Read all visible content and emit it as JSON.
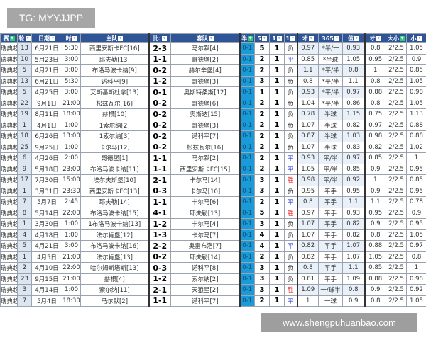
{
  "watermark_top": "TG: MYYJJPP",
  "watermark_bottom": "www.shengpuhuanbao.com",
  "colors": {
    "header": "#2f5597",
    "half_column": "#1a9ad6",
    "draw": "#3b4bd6",
    "win": "#e53030"
  },
  "headers": [
    "赛",
    "轮",
    "日期",
    "时",
    "主队",
    "比:",
    "客队",
    "半",
    "5",
    "1",
    "1",
    "才",
    "365",
    "值",
    "才",
    "大小",
    "小"
  ],
  "filtered_columns": [
    0,
    7,
    15
  ],
  "rows": [
    [
      "瑞典超",
      "13",
      "6月21日",
      "5:30",
      "西里安斯卡FC[16]",
      "2-3",
      "马尔默[4]",
      "0-1",
      "5",
      "1",
      "负",
      "0.97",
      "*半/一",
      "0.93",
      "0.8",
      "2/2.5",
      "1.05"
    ],
    [
      "瑞典超",
      "10",
      "5月23日",
      "3:00",
      "耶夫勒[13]",
      "1-1",
      "哥德堡[2]",
      "0-1",
      "2",
      "1",
      "平",
      "0.85",
      "*半球",
      "1.05",
      "0.95",
      "2/2.5",
      "0.9"
    ],
    [
      "瑞典超",
      "5",
      "4月21日",
      "3:00",
      "布洛马波卡纳[9]",
      "0-2",
      "赫尔辛堡[4]",
      "0-1",
      "2",
      "1",
      "负",
      "1.1",
      "*平/半",
      "0.8",
      "1",
      "2/2.5",
      "0.85"
    ],
    [
      "瑞典超",
      "13",
      "6月21日",
      "5:30",
      "诺科平[9]",
      "1-2",
      "哥德堡[3]",
      "0-1",
      "3",
      "1",
      "负",
      "0.8",
      "*平/半",
      "1.1",
      "0.8",
      "2/2.5",
      "1.05"
    ],
    [
      "瑞典超",
      "5",
      "4月25日",
      "3:00",
      "艾斯基斯杜拿[13]",
      "0-1",
      "奥斯特桑斯[12]",
      "0-1",
      "1",
      "1",
      "负",
      "0.93",
      "*平/半",
      "0.97",
      "0.88",
      "2/2.5",
      "0.98"
    ],
    [
      "瑞典超",
      "22",
      "9月1日",
      "21:00",
      "松兹瓦尔[16]",
      "0-2",
      "哥德堡[6]",
      "0-1",
      "2",
      "1",
      "负",
      "1.04",
      "*平/半",
      "0.86",
      "0.8",
      "2/2.5",
      "1.05"
    ],
    [
      "瑞典超",
      "19",
      "8月11日",
      "18:00",
      "赫根[10]",
      "0-2",
      "奥斯达[15]",
      "0-1",
      "2",
      "1",
      "负",
      "0.78",
      "半球",
      "1.15",
      "0.75",
      "2/2.5",
      "1.13"
    ],
    [
      "瑞典超",
      "1",
      "4月1日",
      "1:00",
      "1索尔纳[2]",
      "0-2",
      "哥德堡[3]",
      "0-1",
      "2",
      "1",
      "负",
      "1.07",
      "半球",
      "0.82",
      "0.97",
      "2/2.5",
      "0.88"
    ],
    [
      "瑞典超",
      "18",
      "6月26日",
      "13:00",
      "1索尔纳[3]",
      "0-2",
      "诺科平[7]",
      "0-1",
      "2",
      "1",
      "负",
      "0.87",
      "半球",
      "1.03",
      "0.98",
      "2/2.5",
      "0.88"
    ],
    [
      "瑞典超",
      "25",
      "9月25日",
      "1:00",
      "卡尔马[12]",
      "0-2",
      "松兹瓦尔[16]",
      "0-1",
      "2",
      "1",
      "负",
      "1.07",
      "半球",
      "0.83",
      "0.82",
      "2/2.5",
      "1.02"
    ],
    [
      "瑞典超",
      "6",
      "4月26日",
      "2:00",
      "哥德堡[1]",
      "1-1",
      "马尔默[2]",
      "0-1",
      "2",
      "1",
      "平",
      "0.93",
      "平/半",
      "0.97",
      "0.85",
      "2/2.5",
      "1"
    ],
    [
      "瑞典超",
      "9",
      "5月18日",
      "23:00",
      "布洛马波卡纳[11]",
      "1-1",
      "西里安斯卡FC[15]",
      "0-1",
      "2",
      "1",
      "平",
      "1.05",
      "平/半",
      "0.85",
      "0.9",
      "2/2.5",
      "0.95"
    ],
    [
      "瑞典超",
      "17",
      "7月30日",
      "15:00",
      "埃尔夫斯堡[10]",
      "2-1",
      "卡尔马[14]",
      "0-1",
      "3",
      "1",
      "胜",
      "0.98",
      "平/半",
      "0.92",
      "1",
      "2/2.5",
      "0.85"
    ],
    [
      "瑞典超",
      "1",
      "3月31日",
      "23:30",
      "西里安斯卡FC[13]",
      "0-3",
      "卡尔马[10]",
      "0-1",
      "3",
      "1",
      "负",
      "0.95",
      "平手",
      "0.95",
      "0.9",
      "2/2.5",
      "0.95"
    ],
    [
      "瑞典超",
      "7",
      "5月7日",
      "2:45",
      "耶夫勒[14]",
      "1-1",
      "卡尔马[6]",
      "0-1",
      "2",
      "1",
      "平",
      "0.8",
      "平手",
      "1.1",
      "1.1",
      "2/2.5",
      "0.78"
    ],
    [
      "瑞典超",
      "8",
      "5月14日",
      "22:00",
      "布洛马波卡纳[15]",
      "4-1",
      "耶夫勒[13]",
      "0-1",
      "5",
      "1",
      "胜",
      "0.97",
      "平手",
      "0.93",
      "0.95",
      "2/2.5",
      "0.9"
    ],
    [
      "瑞典超",
      "1",
      "3月30日",
      "1:00",
      "1布洛马波卡纳[13]",
      "1-2",
      "卡尔马[4]",
      "0-1",
      "3",
      "1",
      "负",
      "1.07",
      "平手",
      "0.82",
      "0.9",
      "2/2.5",
      "0.95"
    ],
    [
      "瑞典超",
      "4",
      "4月18日",
      "1:00",
      "法尔肯堡[12]",
      "1-3",
      "卡尔马[7]",
      "0-1",
      "4",
      "1",
      "负",
      "1.07",
      "平手",
      "0.82",
      "0.8",
      "2/2.5",
      "1.05"
    ],
    [
      "瑞典超",
      "5",
      "4月21日",
      "3:00",
      "布洛马波卡纳[16]",
      "2-2",
      "奥雷布洛[7]",
      "0-1",
      "4",
      "1",
      "平",
      "0.82",
      "平手",
      "1.07",
      "0.88",
      "2/2.5",
      "0.97"
    ],
    [
      "瑞典超",
      "1",
      "4月5日",
      "21:00",
      "法尔肯堡[13]",
      "0-2",
      "耶夫勒[14]",
      "0-1",
      "2",
      "1",
      "负",
      "0.82",
      "平手",
      "1.07",
      "1.05",
      "2/2.5",
      "0.8"
    ],
    [
      "瑞典超",
      "2",
      "4月10日",
      "22:00",
      "哈尔姆斯塔斯[13]",
      "0-3",
      "诺科平[8]",
      "0-1",
      "3",
      "1",
      "负",
      "0.8",
      "平手",
      "1.1",
      "0.85",
      "2/2.5",
      "1"
    ],
    [
      "瑞典超",
      "23",
      "9月15日",
      "21:00",
      "赫根[4]",
      "1-2",
      "索尔纳[2]",
      "0-1",
      "3",
      "1",
      "负",
      "0.81",
      "平手",
      "1.09",
      "0.88",
      "2/2.5",
      "0.98"
    ],
    [
      "瑞典超",
      "3",
      "4月14日",
      "1:00",
      "索尔纳[11]",
      "2-1",
      "天狼星[2]",
      "0-1",
      "3",
      "1",
      "胜",
      "1.09",
      "一/球半",
      "0.8",
      "0.9",
      "2/2.5",
      "0.92"
    ],
    [
      "瑞典超",
      "7",
      "5月4日",
      "18:30",
      "马尔默[2]",
      "1-1",
      "诺科平[7]",
      "0-1",
      "2",
      "1",
      "平",
      "1",
      "一球",
      "0.9",
      "0.8",
      "2/2.5",
      "1.05"
    ]
  ]
}
